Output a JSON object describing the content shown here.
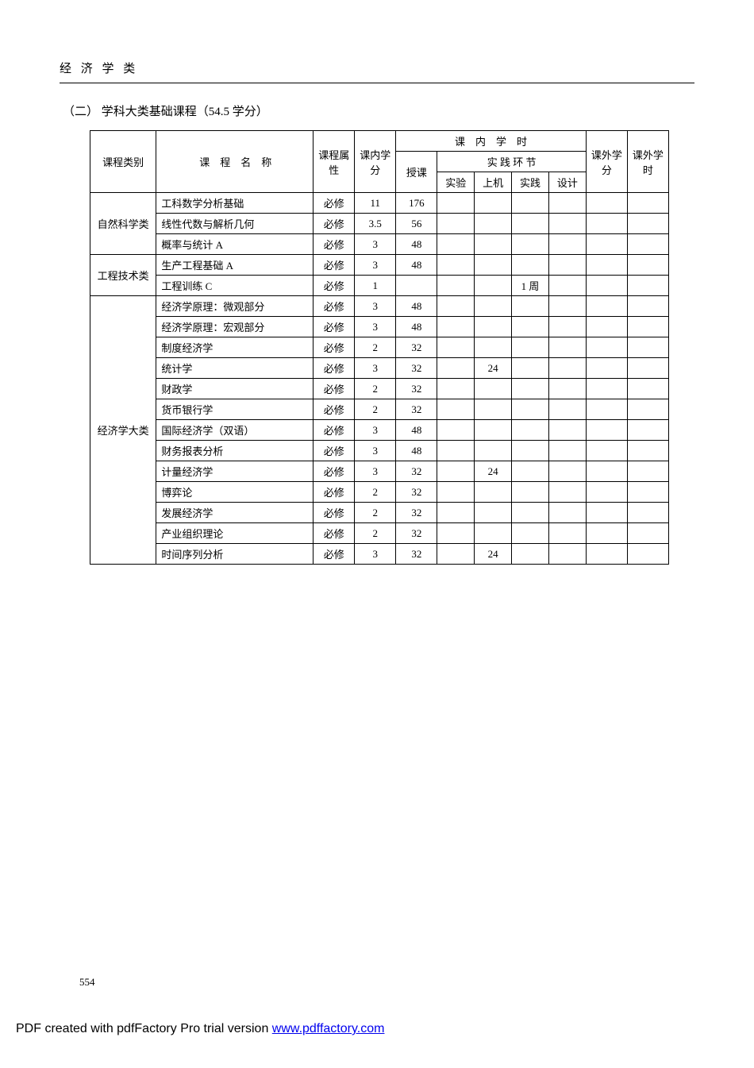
{
  "header": {
    "category_label": "经 济 学 类"
  },
  "section": {
    "title": "（二） 学科大类基础课程（54.5 学分）"
  },
  "table": {
    "headers": {
      "category": "课程类别",
      "name": "课 程 名 称",
      "attr": "课程属性",
      "credit": "课内学分",
      "class_hours_group": "课 内 学 时",
      "teach": "授课",
      "practice_group": "实 践 环 节",
      "experiment": "实验",
      "computer": "上机",
      "practice": "实践",
      "design": "设计",
      "ext_credit": "课外学分",
      "ext_hour": "课外学时"
    },
    "groups": [
      {
        "category": "自然科学类",
        "rows": [
          {
            "name": "工科数学分析基础",
            "attr": "必修",
            "credit": "11",
            "teach": "176",
            "exp": "",
            "comp": "",
            "prac": "",
            "des": "",
            "extc": "",
            "exth": ""
          },
          {
            "name": "线性代数与解析几何",
            "attr": "必修",
            "credit": "3.5",
            "teach": "56",
            "exp": "",
            "comp": "",
            "prac": "",
            "des": "",
            "extc": "",
            "exth": ""
          },
          {
            "name": "概率与统计 A",
            "attr": "必修",
            "credit": "3",
            "teach": "48",
            "exp": "",
            "comp": "",
            "prac": "",
            "des": "",
            "extc": "",
            "exth": ""
          }
        ]
      },
      {
        "category": "工程技术类",
        "rows": [
          {
            "name": "生产工程基础 A",
            "attr": "必修",
            "credit": "3",
            "teach": "48",
            "exp": "",
            "comp": "",
            "prac": "",
            "des": "",
            "extc": "",
            "exth": ""
          },
          {
            "name": "工程训练 C",
            "attr": "必修",
            "credit": "1",
            "teach": "",
            "exp": "",
            "comp": "",
            "prac": "1 周",
            "des": "",
            "extc": "",
            "exth": ""
          }
        ]
      },
      {
        "category": "经济学大类",
        "rows": [
          {
            "name": "经济学原理：微观部分",
            "attr": "必修",
            "credit": "3",
            "teach": "48",
            "exp": "",
            "comp": "",
            "prac": "",
            "des": "",
            "extc": "",
            "exth": ""
          },
          {
            "name": "经济学原理：宏观部分",
            "attr": "必修",
            "credit": "3",
            "teach": "48",
            "exp": "",
            "comp": "",
            "prac": "",
            "des": "",
            "extc": "",
            "exth": ""
          },
          {
            "name": "制度经济学",
            "attr": "必修",
            "credit": "2",
            "teach": "32",
            "exp": "",
            "comp": "",
            "prac": "",
            "des": "",
            "extc": "",
            "exth": ""
          },
          {
            "name": "统计学",
            "attr": "必修",
            "credit": "3",
            "teach": "32",
            "exp": "",
            "comp": "24",
            "prac": "",
            "des": "",
            "extc": "",
            "exth": ""
          },
          {
            "name": "财政学",
            "attr": "必修",
            "credit": "2",
            "teach": "32",
            "exp": "",
            "comp": "",
            "prac": "",
            "des": "",
            "extc": "",
            "exth": ""
          },
          {
            "name": "货币银行学",
            "attr": "必修",
            "credit": "2",
            "teach": "32",
            "exp": "",
            "comp": "",
            "prac": "",
            "des": "",
            "extc": "",
            "exth": ""
          },
          {
            "name": "国际经济学（双语）",
            "attr": "必修",
            "credit": "3",
            "teach": "48",
            "exp": "",
            "comp": "",
            "prac": "",
            "des": "",
            "extc": "",
            "exth": ""
          },
          {
            "name": "财务报表分析",
            "attr": "必修",
            "credit": "3",
            "teach": "48",
            "exp": "",
            "comp": "",
            "prac": "",
            "des": "",
            "extc": "",
            "exth": ""
          },
          {
            "name": "计量经济学",
            "attr": "必修",
            "credit": "3",
            "teach": "32",
            "exp": "",
            "comp": "24",
            "prac": "",
            "des": "",
            "extc": "",
            "exth": ""
          },
          {
            "name": "博弈论",
            "attr": "必修",
            "credit": "2",
            "teach": "32",
            "exp": "",
            "comp": "",
            "prac": "",
            "des": "",
            "extc": "",
            "exth": ""
          },
          {
            "name": "发展经济学",
            "attr": "必修",
            "credit": "2",
            "teach": "32",
            "exp": "",
            "comp": "",
            "prac": "",
            "des": "",
            "extc": "",
            "exth": ""
          },
          {
            "name": "产业组织理论",
            "attr": "必修",
            "credit": "2",
            "teach": "32",
            "exp": "",
            "comp": "",
            "prac": "",
            "des": "",
            "extc": "",
            "exth": ""
          },
          {
            "name": "时间序列分析",
            "attr": "必修",
            "credit": "3",
            "teach": "32",
            "exp": "",
            "comp": "24",
            "prac": "",
            "des": "",
            "extc": "",
            "exth": ""
          }
        ]
      }
    ]
  },
  "page_number": "554",
  "footer": {
    "text": "PDF created with pdfFactory Pro trial version ",
    "link_text": "www.pdffactory.com",
    "link_href": "http://www.pdffactory.com"
  }
}
